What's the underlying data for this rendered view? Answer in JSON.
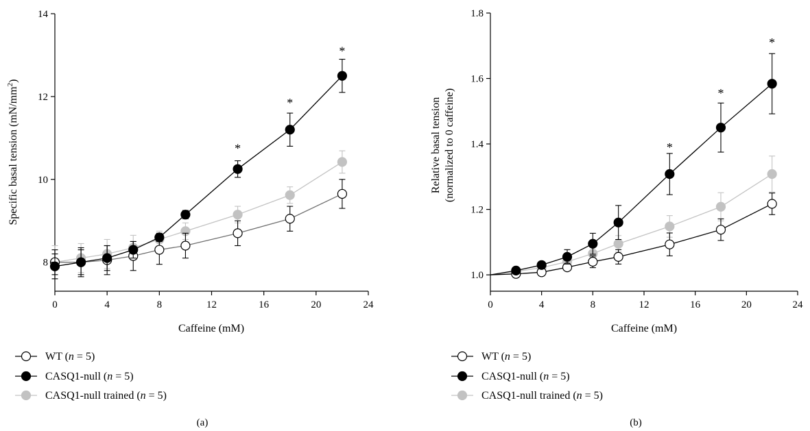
{
  "chart_data": [
    {
      "panel_label": "(a)",
      "type": "line",
      "xlabel": "Caffeine (mM)",
      "ylabel_main": "Specific basal tension (mN/mm",
      "ylabel_sup": "2",
      "ylabel_close": ")",
      "xlim": [
        0,
        24
      ],
      "ylim": [
        7.3,
        14
      ],
      "xticks": [
        "0",
        "4",
        "8",
        "12",
        "16",
        "20",
        "24"
      ],
      "xtick_values": [
        0,
        4,
        8,
        12,
        16,
        20,
        24
      ],
      "yticks": [
        "8",
        "10",
        "12",
        "14"
      ],
      "ytick_values": [
        8,
        10,
        12,
        14
      ],
      "grid": false,
      "legend_position": "bottom-left, below plot",
      "series": [
        {
          "legend_prefix": "WT (",
          "legend_n": "n",
          "legend_suffix": " = 5)",
          "color": "#000000",
          "line_color": "#707070",
          "marker_fill": "#ffffff",
          "x": [
            0,
            2,
            4,
            6,
            8,
            10,
            14,
            18,
            22
          ],
          "y": [
            8.0,
            8.0,
            8.05,
            8.15,
            8.3,
            8.4,
            8.7,
            9.05,
            9.65
          ],
          "err": [
            0.3,
            0.35,
            0.35,
            0.35,
            0.35,
            0.3,
            0.3,
            0.3,
            0.35
          ]
        },
        {
          "legend_prefix": "CASQ1-null (",
          "legend_n": "n",
          "legend_suffix": " = 5)",
          "color": "#000000",
          "line_color": "#000000",
          "marker_fill": "#000000",
          "x": [
            0,
            2,
            4,
            6,
            8,
            10,
            14,
            18,
            22
          ],
          "y": [
            7.9,
            8.0,
            8.1,
            8.3,
            8.6,
            9.15,
            10.25,
            11.2,
            12.5
          ],
          "err": [
            0.3,
            0.3,
            0.3,
            0.2,
            0.1,
            0.1,
            0.2,
            0.4,
            0.4
          ]
        },
        {
          "legend_prefix": "CASQ1-null trained (",
          "legend_n": "n",
          "legend_suffix": " = 5)",
          "color": "#c2c2c2",
          "line_color": "#c2c2c2",
          "marker_fill": "#c2c2c2",
          "x": [
            0,
            2,
            4,
            6,
            8,
            10,
            14,
            18,
            22
          ],
          "y": [
            8.0,
            8.1,
            8.2,
            8.35,
            8.55,
            8.75,
            9.15,
            9.62,
            10.42
          ],
          "err": [
            0.4,
            0.35,
            0.35,
            0.3,
            0.2,
            0.2,
            0.2,
            0.2,
            0.27
          ]
        }
      ],
      "annotations": [
        {
          "text": "*",
          "x": 14,
          "y": 10.75
        },
        {
          "text": "*",
          "x": 18,
          "y": 11.85
        },
        {
          "text": "*",
          "x": 22,
          "y": 13.1
        }
      ]
    },
    {
      "panel_label": "(b)",
      "type": "line",
      "xlabel": "Caffeine (mM)",
      "ylabel_line1": "Relative basal tension",
      "ylabel_line2": "(normalized to 0 caffeine)",
      "xlim": [
        0,
        24
      ],
      "ylim": [
        0.95,
        1.8
      ],
      "xticks": [
        "0",
        "4",
        "8",
        "12",
        "16",
        "20",
        "24"
      ],
      "xtick_values": [
        0,
        4,
        8,
        12,
        16,
        20,
        24
      ],
      "yticks": [
        "1.0",
        "1.2",
        "1.4",
        "1.6",
        "1.8"
      ],
      "ytick_values": [
        1.0,
        1.2,
        1.4,
        1.6,
        1.8
      ],
      "grid": false,
      "legend_position": "bottom-left, below plot",
      "series": [
        {
          "legend_prefix": "WT (",
          "legend_n": "n",
          "legend_suffix": " = 5)",
          "color": "#000000",
          "line_color": "#000000",
          "marker_fill": "#ffffff",
          "x": [
            0,
            2,
            4,
            6,
            8,
            10,
            14,
            18,
            22
          ],
          "y": [
            1.0,
            1.003,
            1.008,
            1.023,
            1.04,
            1.055,
            1.093,
            1.138,
            1.217
          ],
          "err": [
            0,
            0.008,
            0.008,
            0.01,
            0.018,
            0.022,
            0.035,
            0.033,
            0.033
          ]
        },
        {
          "legend_prefix": "CASQ1-null (",
          "legend_n": "n",
          "legend_suffix": " = 5)",
          "color": "#000000",
          "line_color": "#000000",
          "marker_fill": "#000000",
          "x": [
            0,
            2,
            4,
            6,
            8,
            10,
            14,
            18,
            22
          ],
          "y": [
            1.0,
            1.013,
            1.03,
            1.055,
            1.095,
            1.16,
            1.308,
            1.45,
            1.584
          ],
          "err": [
            0,
            0.005,
            0.008,
            0.022,
            0.032,
            0.052,
            0.063,
            0.075,
            0.092
          ]
        },
        {
          "legend_prefix": "CASQ1-null trained (",
          "legend_n": "n",
          "legend_suffix": " = 5)",
          "color": "#c2c2c2",
          "line_color": "#c2c2c2",
          "marker_fill": "#c2c2c2",
          "x": [
            0,
            2,
            4,
            6,
            8,
            10,
            14,
            18,
            22
          ],
          "y": [
            1.0,
            1.01,
            1.022,
            1.04,
            1.065,
            1.095,
            1.148,
            1.208,
            1.308
          ],
          "err": [
            0,
            0.008,
            0.01,
            0.018,
            0.02,
            0.025,
            0.033,
            0.043,
            0.055
          ]
        }
      ],
      "annotations": [
        {
          "text": "*",
          "x": 14,
          "y": 1.39
        },
        {
          "text": "*",
          "x": 18,
          "y": 1.555
        },
        {
          "text": "*",
          "x": 22,
          "y": 1.71
        }
      ]
    }
  ]
}
